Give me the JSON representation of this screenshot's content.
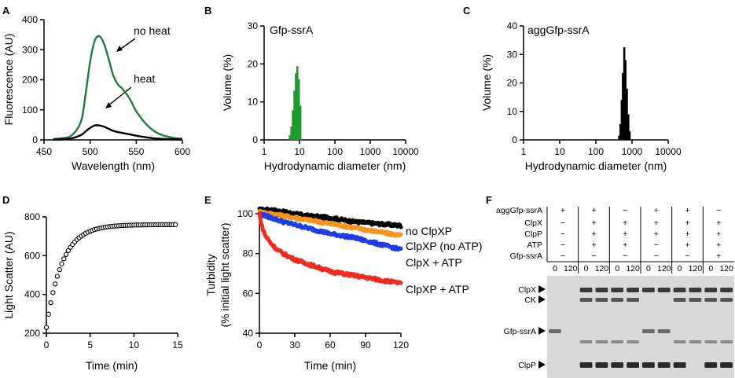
{
  "panels": {
    "A": "A",
    "B": "B",
    "C": "C",
    "D": "D",
    "E": "E",
    "F": "F"
  },
  "chart_data": [
    {
      "id": "A",
      "type": "line",
      "xlabel": "Wavelength (nm)",
      "ylabel": "Fluorescence (AU)",
      "xlim": [
        450,
        600
      ],
      "ylim": [
        0,
        400
      ],
      "xticks": [
        450,
        500,
        550,
        600
      ],
      "yticks": [
        0,
        100,
        200,
        300,
        400
      ],
      "series": [
        {
          "name": "no heat",
          "color": "#1e7d3c",
          "x": [
            460,
            470,
            480,
            490,
            495,
            500,
            505,
            510,
            515,
            520,
            525,
            530,
            535,
            540,
            545,
            550,
            560,
            570,
            580,
            590,
            600
          ],
          "y": [
            3,
            6,
            15,
            60,
            150,
            260,
            330,
            345,
            320,
            270,
            215,
            185,
            170,
            150,
            125,
            95,
            55,
            28,
            14,
            7,
            4
          ]
        },
        {
          "name": "heat",
          "color": "#000000",
          "x": [
            460,
            470,
            480,
            490,
            495,
            500,
            505,
            510,
            515,
            520,
            525,
            530,
            540,
            550,
            560,
            570,
            580,
            590,
            600
          ],
          "y": [
            1,
            2,
            5,
            16,
            28,
            40,
            48,
            48,
            44,
            37,
            30,
            26,
            20,
            14,
            9,
            5,
            3,
            2,
            1
          ]
        }
      ],
      "annotations": [
        "no heat",
        "heat"
      ]
    },
    {
      "id": "B",
      "type": "bar",
      "title": "Gfp-ssrA",
      "xlabel": "Hydrodynamic diameter (nm)",
      "ylabel": "Volume (%)",
      "xscale": "log",
      "xlim": [
        1,
        10000
      ],
      "ylim": [
        0,
        30
      ],
      "xticks": [
        1,
        10,
        100,
        1000,
        10000
      ],
      "xticklabels": [
        "1",
        "10",
        "100",
        "1000",
        "10000"
      ],
      "yticks": [
        0,
        10,
        20,
        30
      ],
      "color": "#1e9b2e",
      "x": [
        5.3,
        5.9,
        6.5,
        7.2,
        7.9,
        8.7,
        9.6,
        10.6
      ],
      "values": [
        1.2,
        3.5,
        7.8,
        13,
        17.5,
        19.4,
        16,
        9
      ]
    },
    {
      "id": "C",
      "type": "bar",
      "title": "aggGfp-ssrA",
      "xlabel": "Hydrodynamic diameter (nm)",
      "ylabel": "Volume (%)",
      "xscale": "log",
      "xlim": [
        1,
        10000
      ],
      "ylim": [
        0,
        40
      ],
      "xticks": [
        1,
        10,
        100,
        1000,
        10000
      ],
      "xticklabels": [
        "1",
        "10",
        "100",
        "1000",
        "10000"
      ],
      "yticks": [
        0,
        10,
        20,
        30,
        40
      ],
      "color": "#000000",
      "x": [
        440,
        480,
        520,
        560,
        610,
        660,
        720,
        790,
        860
      ],
      "values": [
        1.5,
        5.5,
        14,
        23.5,
        32.5,
        28,
        18,
        9,
        3
      ]
    },
    {
      "id": "D",
      "type": "scatter",
      "xlabel": "Time (min)",
      "ylabel": "Light Scatter (AU)",
      "xlim": [
        0,
        15
      ],
      "ylim": [
        200,
        800
      ],
      "xticks": [
        0,
        5,
        10,
        15
      ],
      "yticks": [
        200,
        400,
        600,
        800
      ],
      "marker": "open-circle",
      "model": {
        "y0": 230,
        "ymax": 760,
        "k": 0.55,
        "x_start": 0,
        "x_end": 14.8,
        "step": 0.25
      }
    },
    {
      "id": "E",
      "type": "line",
      "xlabel": "Time (min)",
      "ylabel": "Turbidity",
      "ylabel2": "(% initial light scatter)",
      "xlim": [
        0,
        120
      ],
      "ylim": [
        40,
        100
      ],
      "xticks": [
        0,
        30,
        60,
        90,
        120
      ],
      "yticks": [
        40,
        60,
        80,
        100
      ],
      "series": [
        {
          "name": "no ClpXP",
          "color": "#000000",
          "x": [
            0,
            10,
            20,
            40,
            60,
            80,
            100,
            120
          ],
          "y": [
            102,
            102,
            101,
            99,
            98,
            96,
            95,
            94
          ]
        },
        {
          "name": "ClpXP (no ATP)",
          "color": "#f7941d",
          "x": [
            0,
            10,
            20,
            40,
            60,
            80,
            100,
            120
          ],
          "y": [
            101,
            100,
            99,
            97,
            95,
            93,
            91,
            89
          ]
        },
        {
          "name": "ClpX + ATP",
          "color": "#1f3de6",
          "x": [
            0,
            10,
            20,
            40,
            60,
            80,
            100,
            120
          ],
          "y": [
            100,
            98,
            96,
            93,
            90,
            88,
            85,
            82
          ]
        },
        {
          "name": "ClpXP + ATP",
          "color": "#ee2b1f",
          "x": [
            0,
            2,
            5,
            10,
            15,
            20,
            30,
            40,
            50,
            60,
            70,
            80,
            90,
            100,
            110,
            120
          ],
          "y": [
            100,
            94,
            89,
            85,
            82,
            80,
            77,
            75,
            73,
            71,
            70,
            69,
            68,
            67,
            66,
            65
          ]
        }
      ]
    }
  ],
  "gel": {
    "rows": [
      {
        "label": "aggGfp-ssrA",
        "marks": [
          "+",
          "+",
          "−",
          "+",
          "+",
          "−"
        ]
      },
      {
        "label": "ClpX",
        "marks": [
          "−",
          "+",
          "+",
          "+",
          "+",
          "+"
        ]
      },
      {
        "label": "ClpP",
        "marks": [
          "−",
          "+",
          "+",
          "+",
          "+",
          "+"
        ]
      },
      {
        "label": "ATP",
        "marks": [
          "−",
          "+",
          "+",
          "−",
          "+",
          "+"
        ]
      },
      {
        "label": "Gfp-ssrA",
        "marks": [
          "−",
          "−",
          "−",
          "−",
          "−",
          "+"
        ]
      }
    ],
    "time_labels": [
      "0",
      "120",
      "0",
      "120",
      "0",
      "120",
      "0",
      "120",
      "0",
      "120",
      "0",
      "120"
    ],
    "band_labels": [
      "ClpX",
      "CK",
      "Gfp-ssrA",
      "ClpP"
    ]
  }
}
